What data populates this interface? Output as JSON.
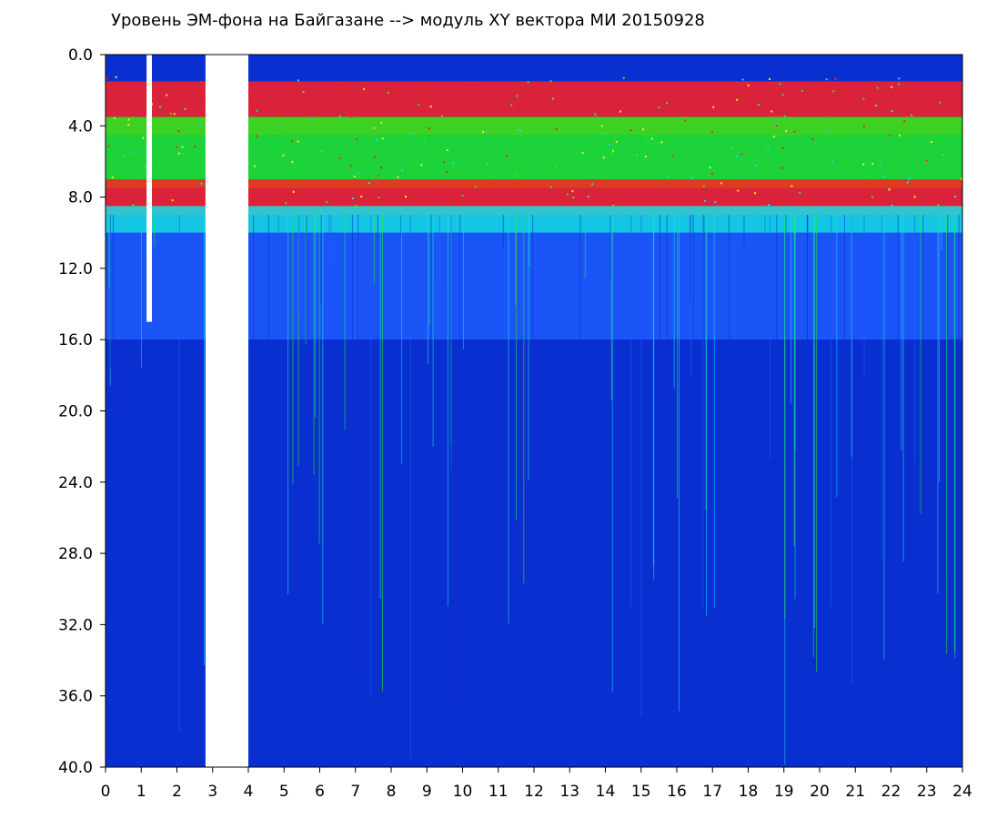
{
  "chart_data": {
    "type": "heatmap",
    "title": "Уровень ЭМ-фона на Байгазане   -->  модуль XY вектора МИ  20150928",
    "xlabel": "",
    "ylabel": "",
    "xlim": [
      0,
      24
    ],
    "ylim": [
      0,
      40
    ],
    "y_inverted": true,
    "x_ticks": [
      "0",
      "1",
      "2",
      "3",
      "4",
      "5",
      "6",
      "7",
      "8",
      "9",
      "10",
      "11",
      "12",
      "13",
      "14",
      "15",
      "16",
      "17",
      "18",
      "19",
      "20",
      "21",
      "22",
      "23",
      "24"
    ],
    "y_ticks": [
      "0.0",
      "4.0",
      "8.0",
      "12.0",
      "16.0",
      "20.0",
      "24.0",
      "28.0",
      "32.0",
      "36.0",
      "40.0"
    ],
    "colors": {
      "background_low": "#0a2fd0",
      "low_mid": "#1e5cff",
      "mid": "#18e0e8",
      "mid_high": "#20f020",
      "high": "#f0f020",
      "very_high": "#ff2020",
      "no_data": "#ffffff"
    },
    "data_gaps": [
      {
        "x_from": 2.8,
        "x_to": 4.0,
        "y_from": 0,
        "y_to": 40
      },
      {
        "x_from": 1.15,
        "x_to": 1.3,
        "y_from": 0,
        "y_to": 15
      }
    ],
    "bands": [
      {
        "y_from": 1.5,
        "y_to": 4.5,
        "level": "very_high"
      },
      {
        "y_from": 3.5,
        "y_to": 7.5,
        "level": "mid_high"
      },
      {
        "y_from": 7.0,
        "y_to": 9.0,
        "level": "very_high"
      },
      {
        "y_from": 8.5,
        "y_to": 10.0,
        "level": "mid"
      },
      {
        "y_from": 10.0,
        "y_to": 16.0,
        "level": "low_mid"
      },
      {
        "y_from": 16.0,
        "y_to": 40.0,
        "level": "background_low"
      }
    ]
  }
}
